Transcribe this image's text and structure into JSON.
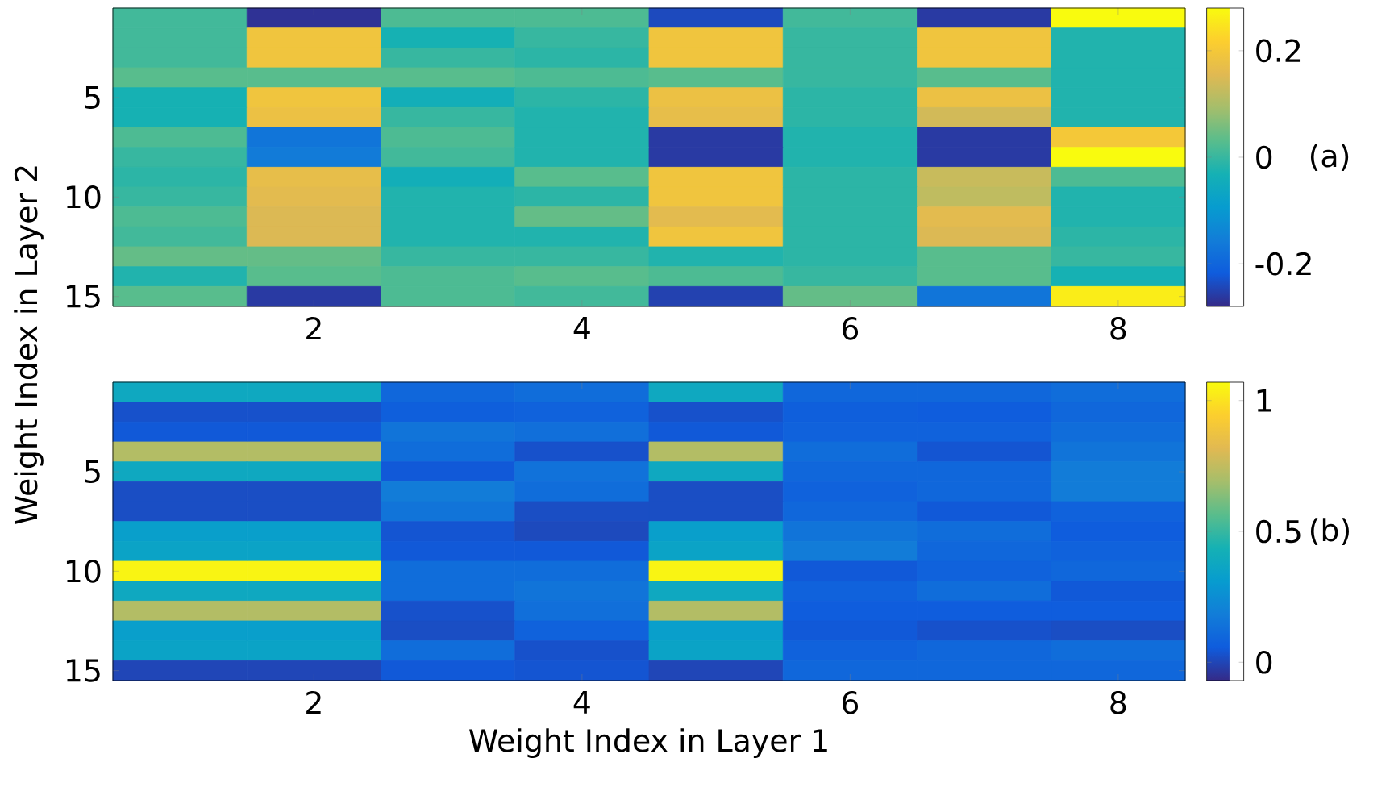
{
  "chart_data": [
    {
      "type": "heatmap",
      "ylabel": "Weight Index in Layer 2",
      "annotations": [
        "(a)"
      ],
      "categories": [
        null,
        "2",
        null,
        "4",
        null,
        "6",
        null,
        "8"
      ],
      "y_categories": [
        null,
        null,
        null,
        null,
        "5",
        null,
        null,
        null,
        null,
        "10",
        null,
        null,
        null,
        null,
        "15"
      ],
      "clim": [
        -0.28,
        0.28
      ],
      "cticks": [
        -0.2,
        0,
        0.2
      ],
      "cells": [
        [
          0.01,
          -0.27,
          0.02,
          0.02,
          -0.24,
          0.01,
          -0.26,
          0.28
        ],
        [
          0.01,
          0.19,
          -0.03,
          0.0,
          0.19,
          0.0,
          0.19,
          -0.02
        ],
        [
          0.01,
          0.19,
          0.0,
          -0.01,
          0.19,
          0.0,
          0.19,
          -0.02
        ],
        [
          0.03,
          0.03,
          0.03,
          0.02,
          0.03,
          0.0,
          0.03,
          -0.02
        ],
        [
          -0.03,
          0.19,
          -0.04,
          -0.01,
          0.18,
          -0.01,
          0.18,
          -0.02
        ],
        [
          -0.03,
          0.18,
          0.0,
          -0.02,
          0.17,
          -0.01,
          0.14,
          -0.02
        ],
        [
          0.02,
          -0.17,
          0.02,
          -0.02,
          -0.26,
          -0.02,
          -0.26,
          0.2
        ],
        [
          0.0,
          -0.16,
          0.01,
          -0.02,
          -0.26,
          -0.02,
          -0.26,
          0.28
        ],
        [
          -0.01,
          0.17,
          -0.04,
          0.03,
          0.19,
          -0.01,
          0.13,
          0.02
        ],
        [
          0.0,
          0.16,
          -0.02,
          -0.01,
          0.19,
          -0.01,
          0.12,
          -0.02
        ],
        [
          0.02,
          0.15,
          -0.02,
          0.04,
          0.16,
          -0.01,
          0.16,
          -0.02
        ],
        [
          0.01,
          0.15,
          -0.02,
          -0.02,
          0.19,
          -0.01,
          0.15,
          -0.01
        ],
        [
          0.04,
          0.04,
          0.0,
          0.0,
          -0.02,
          -0.01,
          0.03,
          0.0
        ],
        [
          -0.02,
          0.03,
          0.02,
          0.03,
          0.02,
          0.0,
          0.03,
          -0.03
        ],
        [
          0.03,
          -0.26,
          0.02,
          0.01,
          -0.25,
          0.04,
          -0.17,
          0.26
        ]
      ]
    },
    {
      "type": "heatmap",
      "xlabel": "Weight Index in Layer 1",
      "annotations": [
        "(b)"
      ],
      "categories": [
        null,
        "2",
        null,
        "4",
        null,
        "6",
        null,
        "8"
      ],
      "y_categories": [
        null,
        null,
        null,
        null,
        "5",
        null,
        null,
        null,
        null,
        "10",
        null,
        null,
        null,
        null,
        "15"
      ],
      "clim": [
        -0.07,
        1.07
      ],
      "cticks": [
        0,
        0.5,
        1
      ],
      "cells": [
        [
          0.38,
          0.38,
          0.1,
          0.12,
          0.38,
          0.1,
          0.1,
          0.12
        ],
        [
          0.03,
          0.03,
          0.07,
          0.08,
          0.03,
          0.07,
          0.06,
          0.1
        ],
        [
          0.05,
          0.05,
          0.15,
          0.13,
          0.05,
          0.08,
          0.08,
          0.12
        ],
        [
          0.72,
          0.72,
          0.12,
          0.03,
          0.72,
          0.12,
          0.04,
          0.15
        ],
        [
          0.38,
          0.38,
          0.05,
          0.14,
          0.38,
          0.1,
          0.1,
          0.18
        ],
        [
          0.02,
          0.02,
          0.18,
          0.12,
          0.02,
          0.08,
          0.1,
          0.18
        ],
        [
          0.02,
          0.02,
          0.15,
          0.02,
          0.02,
          0.1,
          0.05,
          0.08
        ],
        [
          0.33,
          0.33,
          0.04,
          0.01,
          0.33,
          0.15,
          0.12,
          0.06
        ],
        [
          0.35,
          0.35,
          0.05,
          0.05,
          0.35,
          0.18,
          0.1,
          0.08
        ],
        [
          1.05,
          1.05,
          0.12,
          0.12,
          1.05,
          0.05,
          0.08,
          0.1
        ],
        [
          0.38,
          0.38,
          0.12,
          0.15,
          0.38,
          0.08,
          0.12,
          0.05
        ],
        [
          0.72,
          0.72,
          0.03,
          0.13,
          0.72,
          0.06,
          0.06,
          0.06
        ],
        [
          0.33,
          0.33,
          0.02,
          0.08,
          0.33,
          0.05,
          0.03,
          0.02
        ],
        [
          0.35,
          0.35,
          0.12,
          0.03,
          0.35,
          0.08,
          0.1,
          0.12
        ],
        [
          0.0,
          0.0,
          0.05,
          0.04,
          0.0,
          0.1,
          0.1,
          0.1
        ]
      ]
    }
  ]
}
